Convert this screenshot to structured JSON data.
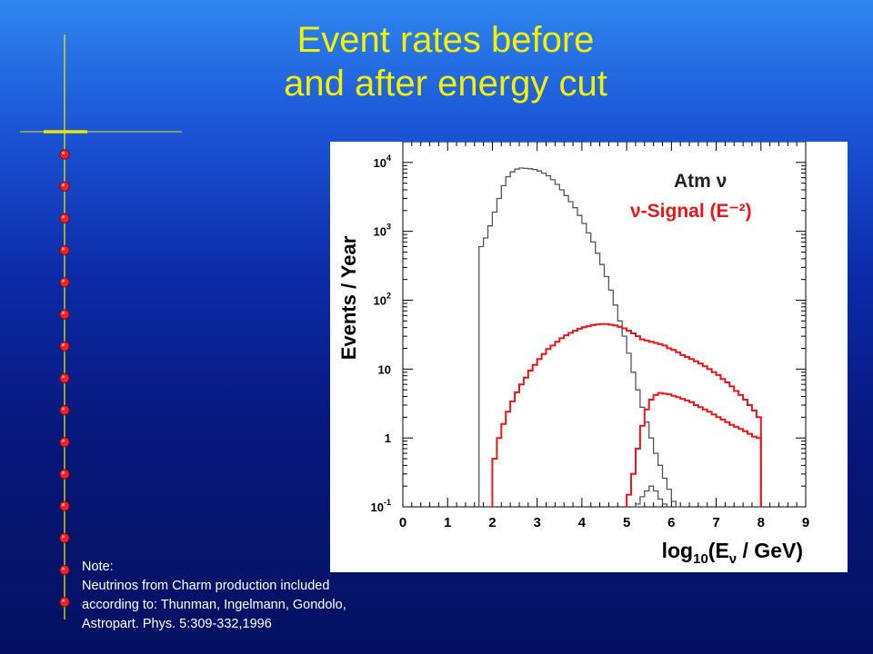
{
  "slide": {
    "title_line1": "Event rates before",
    "title_line2": "and after energy cut",
    "colors": {
      "title": "#f2f200",
      "string": "#e8e800",
      "module": "#ee2222",
      "note": "#ffffff"
    }
  },
  "note": {
    "lines": [
      "Note:",
      "Neutrinos from Charm production included",
      "according to: Thunman, Ingelmann, Gondolo,",
      "Astropart. Phys. 5:309-332,1996"
    ]
  },
  "chart_data": {
    "type": "line",
    "title": "",
    "xlabel": "log10(Eν / GeV)",
    "ylabel": "Events / Year",
    "xlim": [
      0,
      9
    ],
    "ylim": [
      0.1,
      20000
    ],
    "yscale": "log",
    "x_ticks": [
      "0",
      "1",
      "2",
      "3",
      "4",
      "5",
      "6",
      "7",
      "8",
      "9"
    ],
    "y_ticks": [
      {
        "value": 0.1,
        "base": "10",
        "exp": "-1"
      },
      {
        "value": 1,
        "base": "1",
        "exp": ""
      },
      {
        "value": 10,
        "base": "10",
        "exp": ""
      },
      {
        "value": 100,
        "base": "10",
        "exp": "2"
      },
      {
        "value": 1000,
        "base": "10",
        "exp": "3"
      },
      {
        "value": 10000,
        "base": "10",
        "exp": "4"
      }
    ],
    "legend": {
      "placement": "top-right",
      "entries": [
        {
          "label": "Atm ν",
          "color": "#222222"
        },
        {
          "label": "ν-Signal (E⁻²)",
          "color": "#e8161b"
        }
      ]
    },
    "series": [
      {
        "name": "Atm ν",
        "color": "#555555",
        "x": [
          1.7,
          1.8,
          1.9,
          2.0,
          2.1,
          2.2,
          2.3,
          2.4,
          2.5,
          2.6,
          2.7,
          2.8,
          2.9,
          3.0,
          3.1,
          3.2,
          3.3,
          3.4,
          3.5,
          3.6,
          3.7,
          3.8,
          3.9,
          4.0,
          4.1,
          4.2,
          4.3,
          4.4,
          4.5,
          4.6,
          4.7,
          4.8,
          4.9,
          5.0,
          5.1,
          5.2,
          5.3,
          5.4,
          5.5,
          5.6,
          5.7,
          5.8,
          5.9,
          6.0,
          6.1
        ],
        "y": [
          600,
          800,
          1200,
          1900,
          3000,
          4600,
          6200,
          7300,
          8000,
          8300,
          8200,
          8100,
          7900,
          7500,
          7000,
          6400,
          5600,
          4800,
          4000,
          3300,
          2700,
          2200,
          1700,
          1300,
          950,
          700,
          480,
          330,
          220,
          140,
          85,
          50,
          30,
          17,
          9,
          5,
          2.8,
          1.7,
          1.0,
          0.6,
          0.4,
          0.26,
          0.18,
          0.12,
          0.1
        ]
      },
      {
        "name": "Atm ν (after energy cut)",
        "color": "#555555",
        "x": [
          5.2,
          5.3,
          5.4,
          5.5,
          5.6,
          5.7,
          5.8
        ],
        "y": [
          0.11,
          0.14,
          0.17,
          0.2,
          0.17,
          0.13,
          0.11
        ]
      },
      {
        "name": "ν-Signal (E⁻²)",
        "color": "#e8161b",
        "x": [
          2.0,
          2.1,
          2.2,
          2.3,
          2.4,
          2.5,
          2.6,
          2.7,
          2.8,
          2.9,
          3.0,
          3.1,
          3.2,
          3.3,
          3.4,
          3.5,
          3.6,
          3.7,
          3.8,
          3.9,
          4.0,
          4.1,
          4.2,
          4.3,
          4.4,
          4.5,
          4.6,
          4.7,
          4.8,
          4.9,
          5.0,
          5.1,
          5.2,
          5.3,
          5.4,
          5.5,
          5.6,
          5.7,
          5.8,
          5.9,
          6.0,
          6.1,
          6.2,
          6.3,
          6.4,
          6.5,
          6.6,
          6.7,
          6.8,
          6.9,
          7.0,
          7.1,
          7.2,
          7.3,
          7.4,
          7.5,
          7.6,
          7.7,
          7.8,
          7.9
        ],
        "y": [
          0.5,
          1.0,
          1.6,
          2.4,
          3.4,
          4.6,
          6.0,
          7.5,
          9.5,
          11.5,
          14,
          16.5,
          19.5,
          22,
          25,
          28,
          31,
          33.5,
          36,
          38.5,
          40.5,
          42,
          43.5,
          44.5,
          45,
          45,
          44,
          43,
          41,
          39,
          36,
          33,
          30,
          27,
          26,
          25,
          24,
          23,
          22,
          20,
          19,
          17.5,
          16,
          15,
          14,
          13,
          12,
          11,
          10,
          9,
          8.2,
          7.2,
          6.4,
          5.6,
          4.8,
          4.2,
          3.6,
          3.0,
          2.5,
          2.0
        ]
      },
      {
        "name": "ν-Signal (E⁻²) (after energy cut)",
        "color": "#e8161b",
        "x": [
          5.0,
          5.1,
          5.2,
          5.3,
          5.4,
          5.5,
          5.6,
          5.7,
          5.8,
          5.9,
          6.0,
          6.1,
          6.2,
          6.3,
          6.4,
          6.5,
          6.6,
          6.7,
          6.8,
          6.9,
          7.0,
          7.1,
          7.2,
          7.3,
          7.4,
          7.5,
          7.6,
          7.7,
          7.8,
          7.9
        ],
        "y": [
          0.15,
          0.3,
          0.7,
          1.5,
          2.6,
          3.6,
          4.2,
          4.5,
          4.4,
          4.3,
          4.1,
          3.9,
          3.7,
          3.5,
          3.3,
          3.0,
          2.8,
          2.6,
          2.4,
          2.2,
          2.0,
          1.85,
          1.7,
          1.55,
          1.45,
          1.35,
          1.25,
          1.15,
          1.05,
          1.0
        ]
      }
    ]
  }
}
